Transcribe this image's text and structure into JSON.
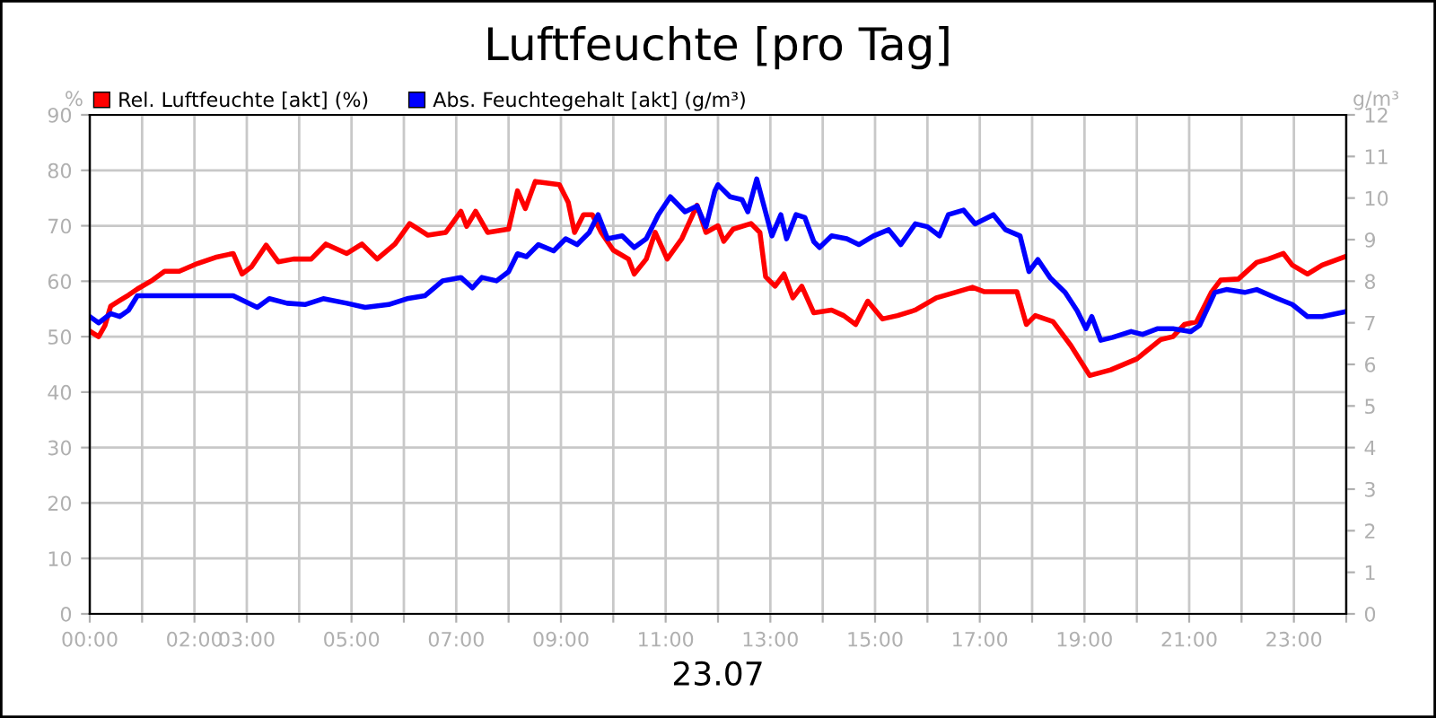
{
  "chart_data": {
    "type": "line",
    "title": "Luftfeuchte [pro Tag]",
    "xlabel": "23.07",
    "ylabel": "%",
    "y2label": "g/m³",
    "xlim": [
      0,
      24
    ],
    "xticks": [
      {
        "value": 0,
        "label": "00:00"
      },
      {
        "value": 1,
        "label": null
      },
      {
        "value": 2,
        "label": "02:00"
      },
      {
        "value": 3,
        "label": "03:00"
      },
      {
        "value": 4,
        "label": null
      },
      {
        "value": 5,
        "label": "05:00"
      },
      {
        "value": 6,
        "label": null
      },
      {
        "value": 7,
        "label": "07:00"
      },
      {
        "value": 8,
        "label": null
      },
      {
        "value": 9,
        "label": "09:00"
      },
      {
        "value": 10,
        "label": null
      },
      {
        "value": 11,
        "label": "11:00"
      },
      {
        "value": 12,
        "label": null
      },
      {
        "value": 13,
        "label": "13:00"
      },
      {
        "value": 14,
        "label": null
      },
      {
        "value": 15,
        "label": "15:00"
      },
      {
        "value": 16,
        "label": null
      },
      {
        "value": 17,
        "label": "17:00"
      },
      {
        "value": 18,
        "label": null
      },
      {
        "value": 19,
        "label": "19:00"
      },
      {
        "value": 20,
        "label": null
      },
      {
        "value": 21,
        "label": "21:00"
      },
      {
        "value": 22,
        "label": null
      },
      {
        "value": 23,
        "label": "23:00"
      },
      {
        "value": 24,
        "label": null
      }
    ],
    "ylim": [
      0,
      90
    ],
    "yticks": [
      0,
      10,
      20,
      30,
      40,
      50,
      60,
      70,
      80,
      90
    ],
    "y2lim": [
      0,
      12
    ],
    "y2ticks": [
      0,
      1,
      2,
      3,
      4,
      5,
      6,
      7,
      8,
      9,
      10,
      11,
      12
    ],
    "grid": true,
    "legend": "top left",
    "marker": "none",
    "line_style": "solid",
    "series": [
      {
        "name": "Rel. Luftfeuchte [akt] (%)",
        "color": "#ff0000",
        "x": [
          0.0,
          0.17,
          0.29,
          0.4,
          0.57,
          0.74,
          0.91,
          1.2,
          1.43,
          1.71,
          2.06,
          2.4,
          2.74,
          2.91,
          3.09,
          3.37,
          3.6,
          3.89,
          4.23,
          4.51,
          4.91,
          5.2,
          5.49,
          5.83,
          6.11,
          6.46,
          6.8,
          7.09,
          7.2,
          7.37,
          7.6,
          8.0,
          8.17,
          8.32,
          8.51,
          8.97,
          9.14,
          9.26,
          9.43,
          9.6,
          9.77,
          10.0,
          10.29,
          10.4,
          10.63,
          10.8,
          11.03,
          11.31,
          11.6,
          11.77,
          12.0,
          12.11,
          12.29,
          12.63,
          12.8,
          12.91,
          13.09,
          13.26,
          13.43,
          13.6,
          13.83,
          14.17,
          14.4,
          14.63,
          14.86,
          15.14,
          15.43,
          15.77,
          16.17,
          16.57,
          16.86,
          17.09,
          17.37,
          17.71,
          17.89,
          18.06,
          18.4,
          18.74,
          19.1,
          19.5,
          20.0,
          20.46,
          20.69,
          20.91,
          21.14,
          21.43,
          21.6,
          21.94,
          22.29,
          22.51,
          22.8,
          22.97,
          23.26,
          23.54,
          24.0
        ],
        "values": [
          51,
          50,
          52,
          55.5,
          56.5,
          57.5,
          58.6,
          60.2,
          61.8,
          61.8,
          63.2,
          64.3,
          65,
          61.3,
          62.6,
          66.5,
          63.5,
          64,
          64,
          66.7,
          65,
          66.7,
          64,
          66.7,
          70.4,
          68.3,
          68.8,
          72.6,
          69.9,
          72.6,
          68.8,
          69.4,
          76.3,
          73.1,
          78,
          77.4,
          74.2,
          68.8,
          72,
          72,
          68.8,
          65.6,
          64,
          61.3,
          64,
          68.8,
          64,
          67.7,
          73.7,
          68.8,
          70,
          67.2,
          69.4,
          70.4,
          68.8,
          60.8,
          59.1,
          61.3,
          57,
          59.1,
          54.3,
          54.8,
          53.8,
          52.2,
          56.4,
          53.2,
          53.8,
          54.8,
          57,
          58.1,
          58.9,
          58.1,
          58.1,
          58.1,
          52.2,
          53.8,
          52.7,
          48.4,
          43,
          44,
          46,
          49.5,
          50,
          52.2,
          52.7,
          58.1,
          60.2,
          60.4,
          63.4,
          64,
          65,
          62.9,
          61.3,
          62.9,
          64.5
        ]
      },
      {
        "name": "Abs. Feuchtegehalt [akt] (g/m³)",
        "color": "#0000ff",
        "axis": "y2",
        "x": [
          0,
          0.17,
          0.4,
          0.57,
          0.74,
          0.91,
          1.26,
          2.06,
          2.74,
          2.97,
          3.2,
          3.43,
          3.77,
          4.11,
          4.46,
          4.91,
          5.26,
          5.71,
          6.06,
          6.4,
          6.74,
          7.09,
          7.31,
          7.49,
          7.77,
          8.0,
          8.17,
          8.34,
          8.57,
          8.86,
          9.09,
          9.31,
          9.54,
          9.71,
          9.89,
          10.17,
          10.4,
          10.63,
          10.86,
          11.09,
          11.37,
          11.6,
          11.77,
          11.94,
          12.0,
          12.23,
          12.46,
          12.57,
          12.74,
          13.03,
          13.2,
          13.31,
          13.49,
          13.66,
          13.83,
          13.94,
          14.17,
          14.46,
          14.69,
          14.97,
          15.26,
          15.49,
          15.77,
          16.0,
          16.23,
          16.4,
          16.69,
          16.91,
          17.26,
          17.49,
          17.77,
          17.94,
          18.11,
          18.34,
          18.63,
          18.86,
          19.03,
          19.14,
          19.31,
          19.54,
          19.89,
          20.11,
          20.4,
          20.69,
          21.03,
          21.2,
          21.49,
          21.71,
          22.06,
          22.29,
          22.69,
          22.97,
          23.26,
          23.54,
          24.0
        ],
        "values": [
          7.15,
          7.0,
          7.22,
          7.15,
          7.3,
          7.65,
          7.65,
          7.65,
          7.65,
          7.51,
          7.37,
          7.58,
          7.47,
          7.44,
          7.58,
          7.47,
          7.37,
          7.44,
          7.58,
          7.65,
          8.01,
          8.09,
          7.84,
          8.09,
          8.01,
          8.23,
          8.66,
          8.59,
          8.88,
          8.73,
          9.02,
          8.88,
          9.17,
          9.6,
          9.02,
          9.09,
          8.81,
          9.02,
          9.6,
          10.03,
          9.67,
          9.81,
          9.31,
          10.17,
          10.32,
          10.03,
          9.96,
          9.67,
          10.46,
          9.09,
          9.6,
          9.02,
          9.6,
          9.53,
          8.95,
          8.81,
          9.09,
          9.02,
          8.88,
          9.09,
          9.24,
          8.88,
          9.38,
          9.31,
          9.09,
          9.6,
          9.71,
          9.38,
          9.6,
          9.24,
          9.09,
          8.23,
          8.52,
          8.09,
          7.73,
          7.29,
          6.86,
          7.15,
          6.58,
          6.65,
          6.79,
          6.72,
          6.86,
          6.86,
          6.79,
          6.94,
          7.73,
          7.8,
          7.73,
          7.8,
          7.58,
          7.44,
          7.15,
          7.15,
          7.27
        ]
      }
    ]
  }
}
